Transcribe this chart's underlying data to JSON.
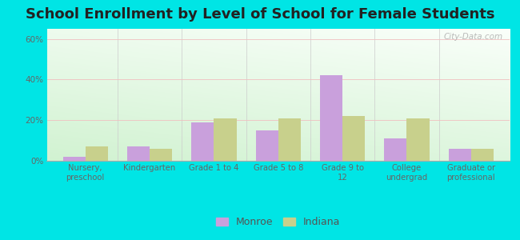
{
  "title": "School Enrollment by Level of School for Female Students",
  "categories": [
    "Nursery,\npreschool",
    "Kindergarten",
    "Grade 1 to 4",
    "Grade 5 to 8",
    "Grade 9 to\n12",
    "College\nundergrad",
    "Graduate or\nprofessional"
  ],
  "monroe_values": [
    2,
    7,
    19,
    15,
    42,
    11,
    6
  ],
  "indiana_values": [
    7,
    6,
    21,
    21,
    22,
    21,
    6
  ],
  "monroe_color": "#c9a0dc",
  "indiana_color": "#c8d08c",
  "background_color": "#00e5e5",
  "title_fontsize": 13,
  "ylim": [
    0,
    65
  ],
  "yticks": [
    0,
    20,
    40,
    60
  ],
  "ytick_labels": [
    "0%",
    "20%",
    "40%",
    "60%"
  ],
  "legend_labels": [
    "Monroe",
    "Indiana"
  ],
  "bar_width": 0.35,
  "watermark": "City-Data.com"
}
